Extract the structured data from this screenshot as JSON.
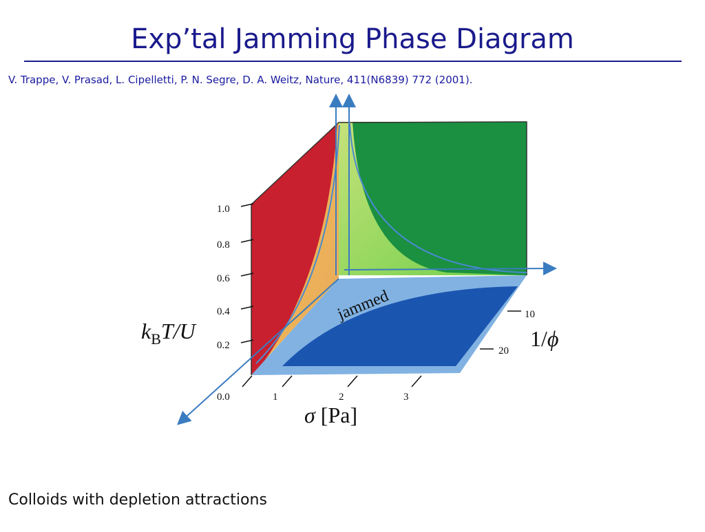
{
  "header": {
    "title": "Exp’tal Jamming Phase Diagram",
    "citation": "V. Trappe, V. Prasad, L.  Cipelletti,  P. N. Segre,  D. A. Weitz, Nature, 411(N6839) 772 (2001)."
  },
  "diagram": {
    "y_axis": {
      "label": {
        "main": "k",
        "sub": "B",
        "rest": "T/U"
      },
      "ticks": [
        "1.0",
        "0.8",
        "0.6",
        "0.4",
        "0.2",
        "0.0"
      ]
    },
    "x_axis": {
      "label": {
        "symbol": "σ",
        "unit": "[Pa]"
      },
      "ticks": [
        "1",
        "2",
        "3"
      ]
    },
    "z_axis": {
      "label": {
        "prefix": "1/",
        "symbol": "ϕ"
      },
      "ticks": [
        "10",
        "20"
      ]
    },
    "region_label": "jammed"
  },
  "caption": "Colloids with depletion attractions"
}
